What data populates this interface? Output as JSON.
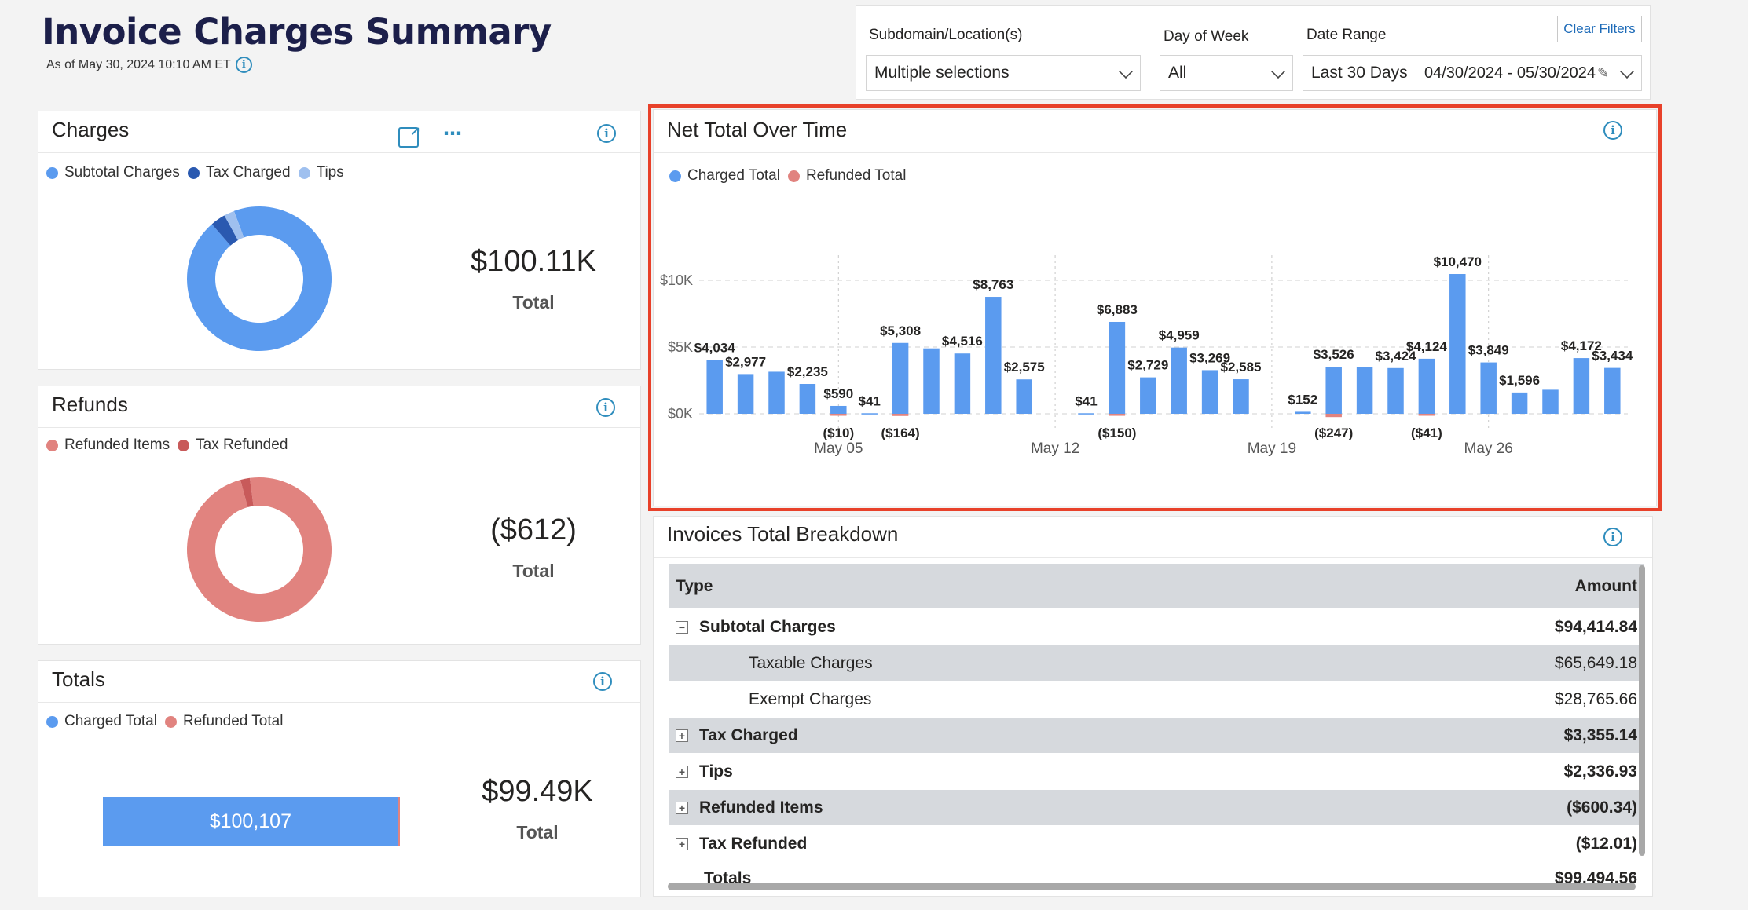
{
  "header": {
    "title": "Invoice Charges Summary",
    "as_of": "As of May 30, 2024 10:10 AM ET"
  },
  "filters": {
    "location_label": "Subdomain/Location(s)",
    "location_value": "Multiple selections",
    "dow_label": "Day of Week",
    "dow_value": "All",
    "date_label": "Date Range",
    "date_preset": "Last 30 Days",
    "date_value": "04/30/2024 - 05/30/2024",
    "clear_label": "Clear Filters"
  },
  "charges": {
    "title": "Charges",
    "legend": [
      "Subtotal Charges",
      "Tax Charged",
      "Tips"
    ],
    "colors": [
      "#5b9bef",
      "#2a59b0",
      "#9fc0ef"
    ],
    "shares": [
      0.9431,
      0.0335,
      0.0233
    ],
    "value": "$100.11K",
    "value_label": "Total"
  },
  "refunds": {
    "title": "Refunds",
    "legend": [
      "Refunded Items",
      "Tax Refunded"
    ],
    "colors": [
      "#e1837f",
      "#c85a5a"
    ],
    "shares": [
      0.979,
      0.021
    ],
    "value": "($612)",
    "value_label": "Total"
  },
  "totals": {
    "title": "Totals",
    "legend": [
      "Charged Total",
      "Refunded Total"
    ],
    "colors": [
      "#5b9bef",
      "#e1837f"
    ],
    "bar_label": "$100,107",
    "charged_fraction": 0.994,
    "value": "$99.49K",
    "value_label": "Total"
  },
  "net_chart": {
    "title": "Net Total Over Time",
    "legend": [
      "Charged Total",
      "Refunded Total"
    ],
    "colors": [
      "#5b9bef",
      "#e1837f"
    ],
    "y_ticks": [
      "$10K",
      "$5K",
      "$0K"
    ],
    "x_ticks": [
      "May 05",
      "May 12",
      "May 19",
      "May 26"
    ]
  },
  "chart_data": {
    "type": "bar",
    "x": [
      "2024-05-01",
      "2024-05-02",
      "2024-05-03",
      "2024-05-04",
      "2024-05-05",
      "2024-05-06",
      "2024-05-07",
      "2024-05-08",
      "2024-05-09",
      "2024-05-10",
      "2024-05-11",
      "2024-05-12",
      "2024-05-13",
      "2024-05-14",
      "2024-05-15",
      "2024-05-16",
      "2024-05-17",
      "2024-05-18",
      "2024-05-19",
      "2024-05-20",
      "2024-05-21",
      "2024-05-22",
      "2024-05-23",
      "2024-05-24",
      "2024-05-25",
      "2024-05-26",
      "2024-05-27",
      "2024-05-28",
      "2024-05-29",
      "2024-05-30"
    ],
    "series": [
      {
        "name": "Charged Total",
        "values": [
          4034,
          2977,
          3150,
          2235,
          590,
          41,
          5308,
          4900,
          4516,
          8763,
          2575,
          0,
          41,
          6883,
          2729,
          4959,
          3269,
          2585,
          0,
          152,
          3526,
          3500,
          3424,
          4124,
          10470,
          3849,
          1596,
          1800,
          4172,
          3434
        ],
        "labels": [
          "$4,034",
          "$2,977",
          "",
          "$2,235",
          "$590",
          "$41",
          "$5,308",
          "",
          "$4,516",
          "$8,763",
          "$2,575",
          "",
          "$41",
          "$6,883",
          "$2,729",
          "$4,959",
          "$3,269",
          "$2,585",
          "",
          "$152",
          "$3,526",
          "",
          "$3,424",
          "$4,124",
          "$10,470",
          "$3,849",
          "$1,596",
          "",
          "$4,172",
          "$3,434"
        ]
      },
      {
        "name": "Refunded Total",
        "values": [
          0,
          0,
          0,
          0,
          10,
          0,
          164,
          0,
          0,
          0,
          0,
          0,
          0,
          150,
          0,
          0,
          0,
          0,
          0,
          0,
          247,
          0,
          0,
          41,
          0,
          0,
          0,
          0,
          0,
          0
        ],
        "labels": [
          "",
          "",
          "",
          "",
          "($10)",
          "",
          "($164)",
          "",
          "",
          "",
          "",
          "",
          "",
          "($150)",
          "",
          "",
          "",
          "",
          "",
          "",
          "($247)",
          "",
          "",
          "($41)",
          "",
          "",
          "",
          "",
          "",
          ""
        ]
      }
    ],
    "ylim": [
      -1000,
      12000
    ],
    "title": "Net Total Over Time"
  },
  "breakdown": {
    "title": "Invoices Total Breakdown",
    "col_type": "Type",
    "col_amount": "Amount",
    "rows": [
      {
        "type": "Subtotal Charges",
        "amount": "$94,414.84",
        "bold": true,
        "toggle": "−",
        "indent": false,
        "shade": false
      },
      {
        "type": "Taxable Charges",
        "amount": "$65,649.18",
        "bold": false,
        "toggle": "",
        "indent": true,
        "shade": true
      },
      {
        "type": "Exempt Charges",
        "amount": "$28,765.66",
        "bold": false,
        "toggle": "",
        "indent": true,
        "shade": false
      },
      {
        "type": "Tax Charged",
        "amount": "$3,355.14",
        "bold": true,
        "toggle": "+",
        "indent": false,
        "shade": true
      },
      {
        "type": "Tips",
        "amount": "$2,336.93",
        "bold": true,
        "toggle": "+",
        "indent": false,
        "shade": false
      },
      {
        "type": "Refunded Items",
        "amount": "($600.34)",
        "bold": true,
        "toggle": "+",
        "indent": false,
        "shade": true
      },
      {
        "type": "Tax Refunded",
        "amount": "($12.01)",
        "bold": true,
        "toggle": "+",
        "indent": false,
        "shade": false
      }
    ],
    "total_label": "Totals",
    "total_amount": "$99,494.56"
  }
}
